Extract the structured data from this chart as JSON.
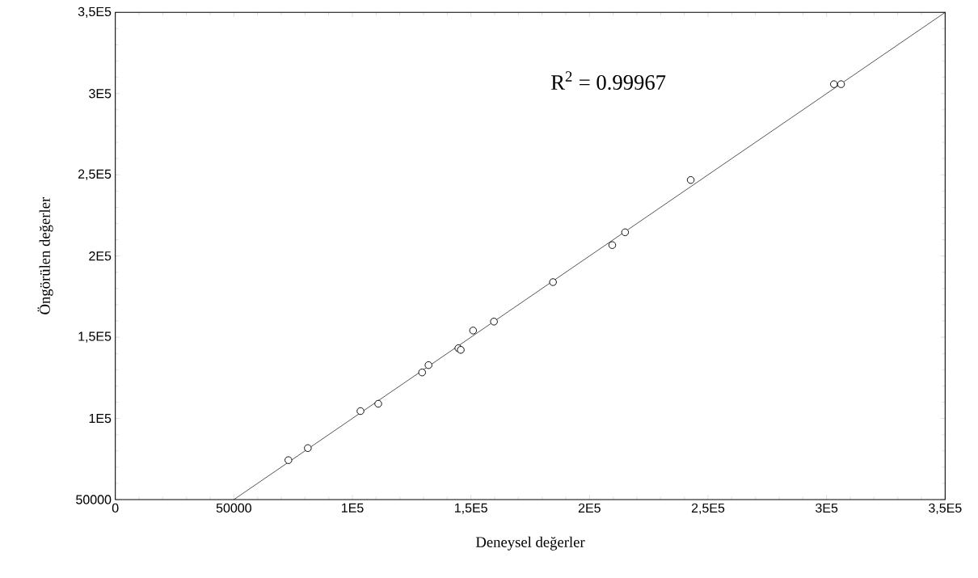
{
  "chart_data": {
    "type": "scatter",
    "xlabel": "Deneysel değerler",
    "ylabel": "Öngörülen değerler",
    "annotations": [
      "R$^{2}$ = 0.99967"
    ],
    "series": [
      {
        "color": "#000000",
        "marker": "circle",
        "x": [
          73000,
          81200,
          103400,
          110900,
          129400,
          132100,
          144700,
          145700,
          150900,
          159700,
          184600,
          209600,
          215000,
          242700,
          303100,
          306100
        ],
        "values": [
          74300,
          81700,
          104500,
          109000,
          128300,
          132800,
          143200,
          142200,
          154100,
          159600,
          183900,
          206700,
          214600,
          246800,
          305800,
          305800
        ]
      },
      {
        "type": "line",
        "color": "#000000",
        "marker": "none",
        "x": [
          50000,
          350000
        ],
        "values": [
          50000,
          350000
        ]
      }
    ],
    "xlim": [
      0,
      350000
    ],
    "ylim": [
      50000,
      350000
    ],
    "xticks": [
      0,
      50000,
      {
        "value": 100000,
        "label": "1E5"
      },
      {
        "value": 150000,
        "label": "1,5E5"
      },
      {
        "value": 200000,
        "label": "2E5"
      },
      {
        "value": 250000,
        "label": "2,5E5"
      },
      {
        "value": 300000,
        "label": "3E5"
      },
      {
        "value": 350000,
        "label": "3,5E5"
      }
    ],
    "yticks": [
      50000,
      {
        "value": 100000,
        "label": "1E5"
      },
      {
        "value": 150000,
        "label": "1,5E5"
      },
      {
        "value": 200000,
        "label": "2E5"
      },
      {
        "value": 250000,
        "label": "2,5E5"
      },
      {
        "value": 300000,
        "label": "3E5"
      },
      {
        "value": 350000,
        "label": "3,5E5"
      }
    ],
    "grid": false
  }
}
